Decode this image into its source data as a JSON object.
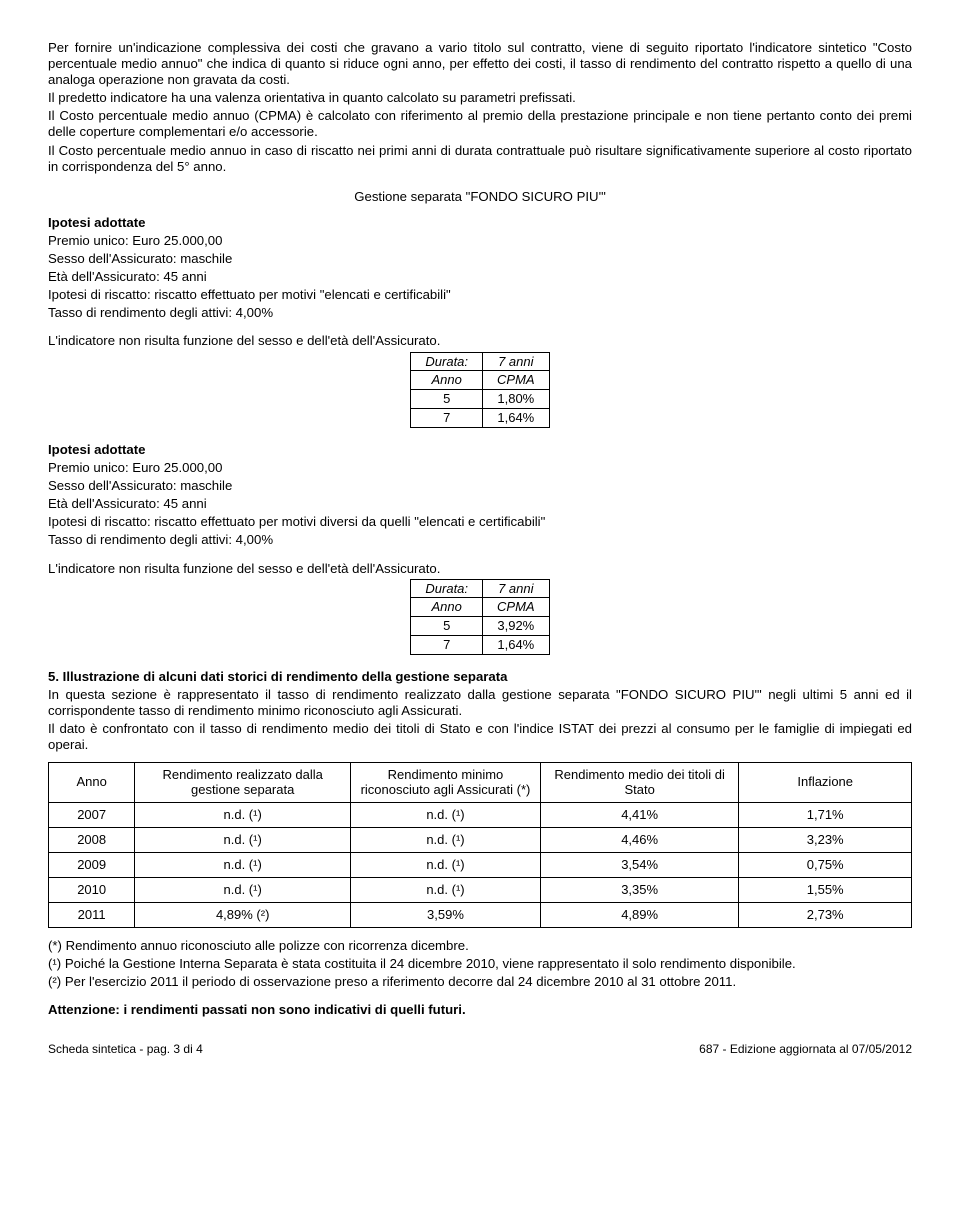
{
  "intro": {
    "p1": "Per fornire un'indicazione complessiva dei costi che gravano a vario titolo sul contratto, viene di seguito riportato l'indicatore sintetico \"Costo percentuale medio annuo\" che indica di quanto si riduce ogni anno, per effetto dei costi, il tasso di rendimento del contratto rispetto a quello di una analoga operazione non gravata da costi.",
    "p2": "Il predetto indicatore ha una valenza orientativa in quanto calcolato su parametri prefissati.",
    "p3": "Il Costo percentuale medio annuo (CPMA) è calcolato con riferimento al premio della prestazione principale e non tiene pertanto conto dei premi delle coperture complementari e/o accessorie.",
    "p4": "Il Costo percentuale medio annuo in caso di riscatto nei primi anni di durata contrattuale può risultare significativamente superiore al costo riportato in corrispondenza del 5° anno."
  },
  "gestione_title": "Gestione separata \"FONDO SICURO PIU'\"",
  "ipotesi1": {
    "title": "Ipotesi adottate",
    "l1": "Premio unico: Euro 25.000,00",
    "l2": "Sesso dell'Assicurato: maschile",
    "l3": "Età dell'Assicurato: 45 anni",
    "l4": "Ipotesi di riscatto: riscatto effettuato per motivi \"elencati e certificabili\"",
    "l5": "Tasso di rendimento degli attivi: 4,00%"
  },
  "indic_line": "L'indicatore non risulta funzione del sesso e dell'età dell'Assicurato.",
  "table1": {
    "durata_label": "Durata:",
    "durata_val": "7 anni",
    "h1": "Anno",
    "h2": "CPMA",
    "r1c1": "5",
    "r1c2": "1,80%",
    "r2c1": "7",
    "r2c2": "1,64%"
  },
  "ipotesi2": {
    "title": "Ipotesi adottate",
    "l1": "Premio unico: Euro 25.000,00",
    "l2": "Sesso dell'Assicurato: maschile",
    "l3": "Età dell'Assicurato: 45 anni",
    "l4": "Ipotesi di riscatto: riscatto effettuato per motivi diversi da quelli \"elencati e certificabili\"",
    "l5": "Tasso di rendimento degli attivi: 4,00%"
  },
  "table2": {
    "durata_label": "Durata:",
    "durata_val": "7 anni",
    "h1": "Anno",
    "h2": "CPMA",
    "r1c1": "5",
    "r1c2": "3,92%",
    "r2c1": "7",
    "r2c2": "1,64%"
  },
  "sec5": {
    "title": "5.   Illustrazione di alcuni dati storici di rendimento della gestione separata",
    "p1": "In questa sezione è rappresentato il tasso di rendimento realizzato dalla gestione separata \"FONDO SICURO PIU'\" negli ultimi 5 anni ed il corrispondente tasso di rendimento minimo riconosciuto agli Assicurati.",
    "p2": "Il dato è confrontato con il tasso di rendimento medio dei titoli di Stato e con l'indice ISTAT dei prezzi al consumo per le famiglie di impiegati ed operai."
  },
  "bigtable": {
    "h1": "Anno",
    "h2": "Rendimento realizzato dalla gestione separata",
    "h3": "Rendimento minimo riconosciuto agli Assicurati (*)",
    "h4": "Rendimento medio dei titoli di Stato",
    "h5": "Inflazione",
    "rows": [
      [
        "2007",
        "n.d. (¹)",
        "n.d. (¹)",
        "4,41%",
        "1,71%"
      ],
      [
        "2008",
        "n.d. (¹)",
        "n.d. (¹)",
        "4,46%",
        "3,23%"
      ],
      [
        "2009",
        "n.d. (¹)",
        "n.d. (¹)",
        "3,54%",
        "0,75%"
      ],
      [
        "2010",
        "n.d. (¹)",
        "n.d. (¹)",
        "3,35%",
        "1,55%"
      ],
      [
        "2011",
        "4,89% (²)",
        "3,59%",
        "4,89%",
        "2,73%"
      ]
    ]
  },
  "notes": {
    "n1": "(*)  Rendimento annuo riconosciuto alle polizze con ricorrenza dicembre.",
    "n2": "(¹) Poiché la Gestione Interna Separata è stata costituita il 24 dicembre 2010, viene rappresentato il solo rendimento disponibile.",
    "n3": "(²)  Per l'esercizio 2011 il periodo di osservazione preso a riferimento decorre dal 24 dicembre 2010 al 31 ottobre 2011."
  },
  "warning": "Attenzione: i rendimenti passati non sono indicativi di quelli futuri.",
  "footer": {
    "left": "Scheda sintetica - pag. 3 di 4",
    "right": "687 - Edizione aggiornata al 07/05/2012"
  }
}
